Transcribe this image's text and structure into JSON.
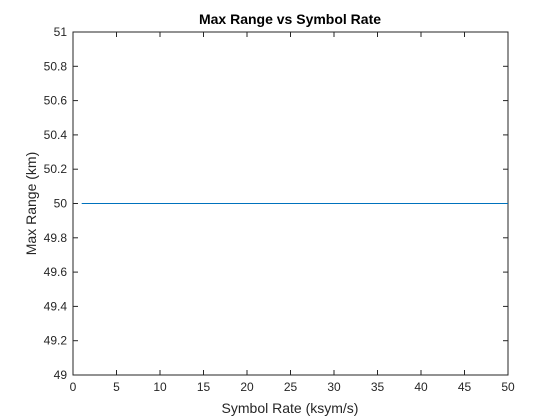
{
  "chart_data": {
    "type": "line",
    "title": "Max Range vs Symbol Rate",
    "xlabel": "Symbol Rate (ksym/s)",
    "ylabel": "Max Range (km)",
    "xlim": [
      0,
      50
    ],
    "ylim": [
      49,
      51
    ],
    "xticks": [
      0,
      5,
      10,
      15,
      20,
      25,
      30,
      35,
      40,
      45,
      50
    ],
    "xtick_labels": [
      "0",
      "5",
      "10",
      "15",
      "20",
      "25",
      "30",
      "35",
      "40",
      "45",
      "50"
    ],
    "yticks": [
      49,
      49.2,
      49.4,
      49.6,
      49.8,
      50,
      50.2,
      50.4,
      50.6,
      50.8,
      51
    ],
    "ytick_labels": [
      "49",
      "49.2",
      "49.4",
      "49.6",
      "49.8",
      "50",
      "50.2",
      "50.4",
      "50.6",
      "50.8",
      "51"
    ],
    "grid": false,
    "series": [
      {
        "x": [
          1,
          50
        ],
        "y": [
          50,
          50
        ],
        "color": "#0072BD"
      }
    ]
  }
}
